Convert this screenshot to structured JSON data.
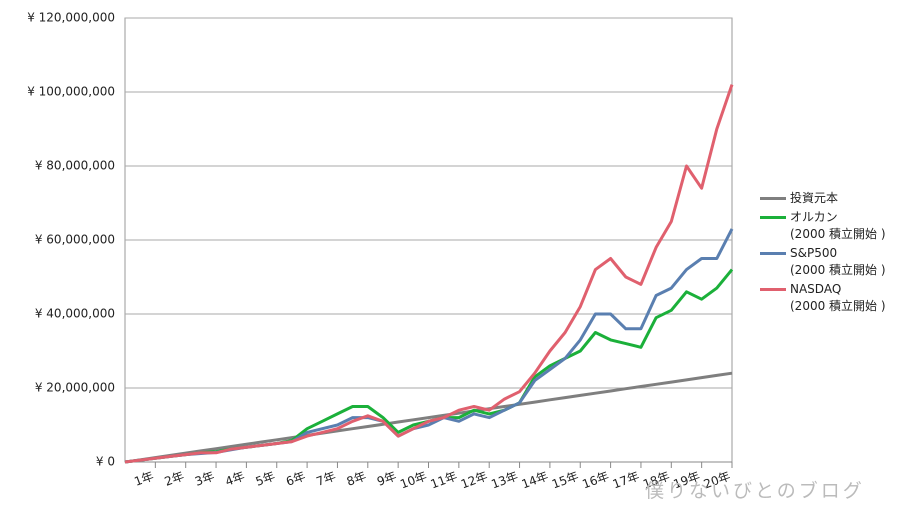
{
  "chart_data": {
    "type": "line",
    "x": [
      0,
      0.5,
      1,
      1.5,
      2,
      2.5,
      3,
      3.5,
      4,
      4.5,
      5,
      5.5,
      6,
      6.5,
      7,
      7.5,
      8,
      8.5,
      9,
      9.5,
      10,
      10.5,
      11,
      11.5,
      12,
      12.5,
      13,
      13.5,
      14,
      14.5,
      15,
      15.5,
      16,
      16.5,
      17,
      17.5,
      18,
      18.5,
      19,
      19.5,
      20
    ],
    "xlim": [
      0,
      20
    ],
    "xticks": [
      {
        "value": 1,
        "label": "1年"
      },
      {
        "value": 2,
        "label": "2年"
      },
      {
        "value": 3,
        "label": "3年"
      },
      {
        "value": 4,
        "label": "4年"
      },
      {
        "value": 5,
        "label": "5年"
      },
      {
        "value": 6,
        "label": "6年"
      },
      {
        "value": 7,
        "label": "7年"
      },
      {
        "value": 8,
        "label": "8年"
      },
      {
        "value": 9,
        "label": "9年"
      },
      {
        "value": 10,
        "label": "10年"
      },
      {
        "value": 11,
        "label": "11年"
      },
      {
        "value": 12,
        "label": "12年"
      },
      {
        "value": 13,
        "label": "13年"
      },
      {
        "value": 14,
        "label": "14年"
      },
      {
        "value": 15,
        "label": "15年"
      },
      {
        "value": 16,
        "label": "16年"
      },
      {
        "value": 17,
        "label": "17年"
      },
      {
        "value": 18,
        "label": "18年"
      },
      {
        "value": 19,
        "label": "19年"
      },
      {
        "value": 20,
        "label": "20年"
      }
    ],
    "ylim": [
      0,
      120000000
    ],
    "yticks": [
      {
        "value": 0,
        "label": "¥ 0"
      },
      {
        "value": 20000000,
        "label": "¥ 20,000,000"
      },
      {
        "value": 40000000,
        "label": "¥ 40,000,000"
      },
      {
        "value": 60000000,
        "label": "¥ 60,000,000"
      },
      {
        "value": 80000000,
        "label": "¥ 80,000,000"
      },
      {
        "value": 100000000,
        "label": "¥ 100,000,000"
      },
      {
        "value": 120000000,
        "label": "¥ 120,000,000"
      }
    ],
    "grid": true,
    "legend": "right",
    "series": [
      {
        "name": "投資元本",
        "color": "#7f7f7f",
        "values": [
          0,
          600000,
          1200000,
          1800000,
          2400000,
          3000000,
          3600000,
          4200000,
          4800000,
          5400000,
          6000000,
          6600000,
          7200000,
          7800000,
          8400000,
          9000000,
          9600000,
          10200000,
          10800000,
          11400000,
          12000000,
          12600000,
          13200000,
          13800000,
          14400000,
          15000000,
          15600000,
          16200000,
          16800000,
          17400000,
          18000000,
          18600000,
          19200000,
          19800000,
          20400000,
          21000000,
          21600000,
          22200000,
          22800000,
          23400000,
          24000000
        ]
      },
      {
        "name": "オルカン\n(2000 積立開始 )",
        "color": "#1bb03a",
        "values": [
          0,
          500000,
          1000000,
          1500000,
          2000000,
          2500000,
          2800000,
          3500000,
          4000000,
          4500000,
          5000000,
          5800000,
          9000000,
          11000000,
          13000000,
          15000000,
          15000000,
          12000000,
          8000000,
          10000000,
          11000000,
          12000000,
          12000000,
          14000000,
          13000000,
          14000000,
          16000000,
          23000000,
          26000000,
          28000000,
          30000000,
          35000000,
          33000000,
          32000000,
          31000000,
          39000000,
          41000000,
          46000000,
          44000000,
          47000000,
          52000000
        ]
      },
      {
        "name": "S&P500\n(2000 積立開始 )",
        "color": "#5a7fb0",
        "values": [
          0,
          500000,
          1000000,
          1500000,
          2000000,
          2300000,
          2600000,
          3300000,
          4000000,
          4500000,
          5000000,
          5500000,
          8000000,
          9000000,
          10000000,
          12000000,
          12000000,
          11000000,
          7000000,
          9000000,
          10000000,
          12000000,
          11000000,
          13000000,
          12000000,
          14000000,
          16000000,
          22000000,
          25000000,
          28000000,
          33000000,
          40000000,
          40000000,
          36000000,
          36000000,
          45000000,
          47000000,
          52000000,
          55000000,
          55000000,
          63000000
        ]
      },
      {
        "name": "NASDAQ\n(2000 積立開始 )",
        "color": "#e0606e",
        "values": [
          0,
          500000,
          1000000,
          1500000,
          2000000,
          2500000,
          2500000,
          3500000,
          4000000,
          4500000,
          5000000,
          5500000,
          7000000,
          8000000,
          9000000,
          11000000,
          12500000,
          11000000,
          7000000,
          9000000,
          11000000,
          12000000,
          14000000,
          15000000,
          14000000,
          17000000,
          19000000,
          24000000,
          30000000,
          35000000,
          42000000,
          52000000,
          55000000,
          50000000,
          48000000,
          58000000,
          65000000,
          80000000,
          74000000,
          90000000,
          102000000
        ]
      }
    ]
  },
  "watermark": "僕りないびとのブログ"
}
